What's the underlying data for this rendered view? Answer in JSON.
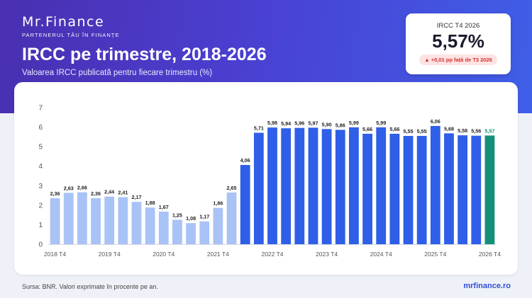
{
  "brand": {
    "name": "Mr.Finance",
    "tagline": "PARTENERUL TĂU ÎN FINANȚE"
  },
  "header": {
    "title": "IRCC pe trimestre, 2018-2026",
    "subtitle": "Valoarea IRCC publicată pentru fiecare trimestru (%)"
  },
  "kpi": {
    "label": "IRCC T4 2026",
    "value": "5,57%",
    "change": "▲ +0,01 pp față de T3 2026",
    "change_color": "#d23030"
  },
  "footer": {
    "source": "Sursa: BNR. Valori exprimate în procente pe an.",
    "website": "mrfinance.ro"
  },
  "colors": {
    "light_bar": "#a9c3f7",
    "dark_bar": "#2f5fe8",
    "highlight_bar": "#14907a"
  },
  "chart_data": {
    "type": "bar",
    "ylim": [
      0,
      7
    ],
    "yticks": [
      "0",
      "1",
      "2",
      "3",
      "4",
      "5",
      "6",
      "7"
    ],
    "grid": false,
    "xtick_labels": [
      {
        "index": 0,
        "label": "2018 T4"
      },
      {
        "index": 4,
        "label": "2019 T4"
      },
      {
        "index": 8,
        "label": "2020 T4"
      },
      {
        "index": 12,
        "label": "2021 T4"
      },
      {
        "index": 16,
        "label": "2022 T4"
      },
      {
        "index": 20,
        "label": "2023 T4"
      },
      {
        "index": 24,
        "label": "2024 T4"
      },
      {
        "index": 28,
        "label": "2025 T4"
      },
      {
        "index": 32,
        "label": "2026 T4"
      }
    ],
    "values": [
      2.36,
      2.63,
      2.66,
      2.36,
      2.44,
      2.41,
      2.17,
      1.88,
      1.67,
      1.25,
      1.08,
      1.17,
      1.86,
      2.65,
      4.06,
      5.71,
      5.98,
      5.94,
      5.96,
      5.97,
      5.9,
      5.86,
      5.99,
      5.66,
      5.99,
      5.66,
      5.55,
      5.55,
      6.06,
      5.68,
      5.58,
      5.56,
      5.57
    ],
    "labels": [
      "2,36",
      "2,63",
      "2,66",
      "2,36",
      "2,44",
      "2,41",
      "2,17",
      "1,88",
      "1,67",
      "1,25",
      "1,08",
      "1,17",
      "1,86",
      "2,65",
      "4,06",
      "5,71",
      "5,98",
      "5,94",
      "5,96",
      "5,97",
      "5,90",
      "5,86",
      "5,99",
      "5,66",
      "5,99",
      "5,66",
      "5,55",
      "5,55",
      "6,06",
      "5,68",
      "5,58",
      "5,56",
      "5,57"
    ]
  }
}
